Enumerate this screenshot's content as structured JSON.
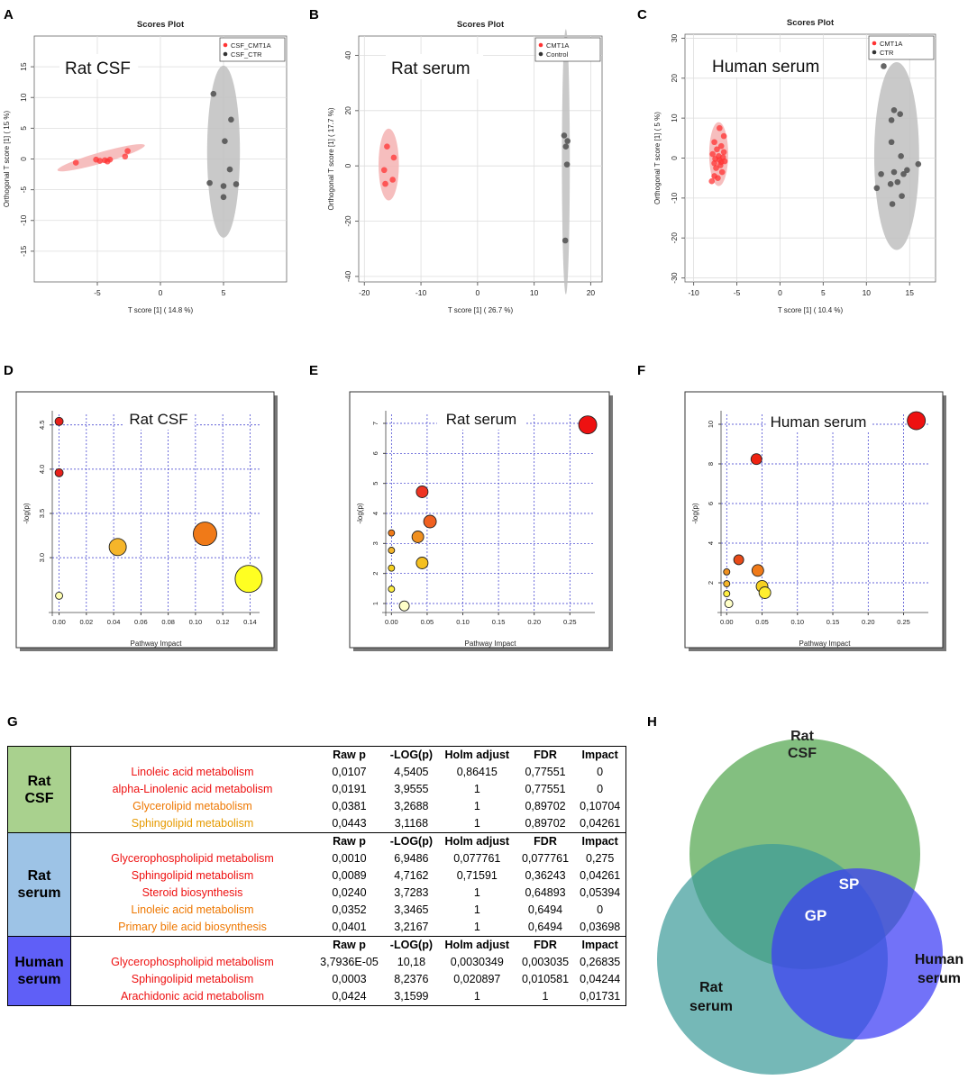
{
  "panel_letters": [
    "A",
    "B",
    "C",
    "D",
    "E",
    "F",
    "G",
    "H"
  ],
  "colors": {
    "red": "#ff3333",
    "gray": "#555555",
    "ellipse_red": "#f4b3b3",
    "ellipse_gray": "#bfbfbf",
    "grid_blue": "#3333cc",
    "ratcsf_fill": "#a9d18e",
    "ratserum_fill": "#9dc3e6",
    "humanserum_fill": "#5f5ff7",
    "venn_csf": "#5aaa55",
    "venn_ratserum": "#3a9a98",
    "venn_human": "#3b3bf5",
    "text_red": "#ee1111",
    "text_orange": "#ee7700",
    "text_gold": "#e69a00"
  },
  "chart_data": [
    {
      "id": "A",
      "type": "scatter",
      "title": "Scores Plot",
      "annotation": "Rat CSF",
      "xlabel": "T score [1] ( 14.8 %)",
      "ylabel": "Orthogonal T score [1] ( 15 %)",
      "xlim": [
        -10,
        10
      ],
      "ylim": [
        -20,
        20
      ],
      "xticks": [
        -5,
        0,
        5
      ],
      "yticks": [
        -15,
        -10,
        -5,
        0,
        5,
        10,
        15
      ],
      "legend": [
        "CSF_CMT1A",
        "CSF_CTR"
      ],
      "series": [
        {
          "name": "CSF_CMT1A",
          "color": "red",
          "points": [
            [
              -6.7,
              -0.6
            ],
            [
              -5.1,
              -0.1
            ],
            [
              -4.8,
              -0.3
            ],
            [
              -4.4,
              -0.2
            ],
            [
              -4.2,
              -0.4
            ],
            [
              -4.0,
              -0.1
            ],
            [
              -2.8,
              0.4
            ],
            [
              -2.6,
              1.3
            ]
          ],
          "ellipse": {
            "cx": -4.7,
            "cy": 0.2,
            "rx": 3.6,
            "ry": 0.9,
            "angle": -16
          }
        },
        {
          "name": "CSF_CTR",
          "color": "gray",
          "points": [
            [
              4.2,
              10.6
            ],
            [
              5.6,
              6.4
            ],
            [
              5.1,
              2.9
            ],
            [
              5.5,
              -1.7
            ],
            [
              3.9,
              -3.9
            ],
            [
              6.0,
              -4.1
            ],
            [
              5.0,
              -4.4
            ],
            [
              5.0,
              -6.2
            ]
          ],
          "ellipse": {
            "cx": 5.0,
            "cy": 1.2,
            "rx": 1.3,
            "ry": 14.0,
            "angle": 0
          }
        }
      ]
    },
    {
      "id": "B",
      "type": "scatter",
      "title": "Scores Plot",
      "annotation": "Rat serum",
      "xlabel": "T score [1] ( 26.7 %)",
      "ylabel": "Orthogonal T score [1] ( 17.7 %)",
      "xlim": [
        -21,
        22
      ],
      "ylim": [
        -42,
        47
      ],
      "xticks": [
        -20,
        -10,
        0,
        10,
        20
      ],
      "yticks": [
        -40,
        -20,
        0,
        20,
        40
      ],
      "legend": [
        "CMT1A",
        "Control"
      ],
      "series": [
        {
          "name": "CMT1A",
          "color": "red",
          "points": [
            [
              -16.0,
              7.0
            ],
            [
              -14.8,
              3.0
            ],
            [
              -16.5,
              -1.5
            ],
            [
              -15.0,
              -5.0
            ],
            [
              -16.3,
              -6.5
            ]
          ],
          "ellipse": {
            "cx": -15.7,
            "cy": 0.5,
            "rx": 1.8,
            "ry": 13.0,
            "angle": 0
          }
        },
        {
          "name": "Control",
          "color": "gray",
          "points": [
            [
              15.3,
              11.0
            ],
            [
              15.9,
              9.0
            ],
            [
              15.6,
              7.0
            ],
            [
              15.8,
              0.5
            ],
            [
              15.5,
              -27.0
            ]
          ],
          "ellipse": {
            "cx": 15.6,
            "cy": 1.5,
            "rx": 0.7,
            "ry": 48.0,
            "angle": 0
          }
        }
      ]
    },
    {
      "id": "C",
      "type": "scatter",
      "title": "Scores Plot",
      "annotation": "Human serum",
      "xlabel": "T score [1] ( 10.4 %)",
      "ylabel": "Orthogonal T score [1] ( 5 %)",
      "xlim": [
        -11,
        18
      ],
      "ylim": [
        -31,
        31
      ],
      "xticks": [
        -10,
        -5,
        0,
        5,
        10,
        15
      ],
      "yticks": [
        -30,
        -20,
        -10,
        0,
        10,
        20,
        30
      ],
      "legend": [
        "CMT1A",
        "CTR"
      ],
      "series": [
        {
          "name": "CMT1A",
          "color": "red",
          "points": [
            [
              -7.0,
              7.5
            ],
            [
              -6.5,
              5.5
            ],
            [
              -7.6,
              4.0
            ],
            [
              -6.8,
              3.0
            ],
            [
              -7.3,
              2.2
            ],
            [
              -6.5,
              1.5
            ],
            [
              -7.8,
              1.0
            ],
            [
              -7.1,
              0.5
            ],
            [
              -6.6,
              0.2
            ],
            [
              -7.5,
              -0.2
            ],
            [
              -7.0,
              -0.5
            ],
            [
              -6.4,
              -0.8
            ],
            [
              -7.6,
              -1.3
            ],
            [
              -6.9,
              -1.8
            ],
            [
              -7.4,
              -2.5
            ],
            [
              -6.7,
              -3.5
            ],
            [
              -7.6,
              -4.5
            ],
            [
              -7.9,
              -5.8
            ],
            [
              -7.2,
              -5.0
            ],
            [
              -6.8,
              -1.0
            ]
          ],
          "ellipse": {
            "cx": -7.1,
            "cy": 1.0,
            "rx": 1.1,
            "ry": 8.0,
            "angle": 0
          }
        },
        {
          "name": "CTR",
          "color": "gray",
          "points": [
            [
              12.0,
              23.0
            ],
            [
              13.2,
              12.0
            ],
            [
              12.9,
              9.5
            ],
            [
              13.9,
              11.0
            ],
            [
              12.9,
              4.0
            ],
            [
              14.0,
              0.5
            ],
            [
              11.7,
              -4.0
            ],
            [
              13.2,
              -3.5
            ],
            [
              14.3,
              -4.0
            ],
            [
              14.7,
              -3.0
            ],
            [
              16.0,
              -1.5
            ],
            [
              13.6,
              -6.0
            ],
            [
              12.8,
              -6.5
            ],
            [
              11.2,
              -7.5
            ],
            [
              14.1,
              -9.5
            ],
            [
              13.0,
              -11.5
            ]
          ],
          "ellipse": {
            "cx": 13.5,
            "cy": 0.5,
            "rx": 2.6,
            "ry": 23.5,
            "angle": 0
          }
        }
      ]
    },
    {
      "id": "D",
      "type": "scatter",
      "title": "",
      "annotation": "Rat CSF",
      "xlabel": "Pathway Impact",
      "ylabel": "-log(p)",
      "xlim": [
        -0.005,
        0.147
      ],
      "ylim": [
        2.38,
        4.62
      ],
      "xticks": [
        "0.00",
        "0.02",
        "0.04",
        "0.06",
        "0.08",
        "0.10",
        "0.12",
        "0.14"
      ],
      "yticks": [
        "3.0",
        "3.5",
        "4.0",
        "4.5"
      ],
      "points": [
        {
          "x": 0.0,
          "y": 4.54,
          "r": 4.5,
          "color": "#e8201a"
        },
        {
          "x": 0.0,
          "y": 3.96,
          "r": 4.5,
          "color": "#e8201a"
        },
        {
          "x": 0.107,
          "y": 3.27,
          "r": 13,
          "color": "#f07a18"
        },
        {
          "x": 0.043,
          "y": 3.12,
          "r": 9.5,
          "color": "#f5b52a"
        },
        {
          "x": 0.139,
          "y": 2.76,
          "r": 15,
          "color": "#ffff22"
        },
        {
          "x": 0.0,
          "y": 2.57,
          "r": 4,
          "color": "#ffffb0"
        }
      ]
    },
    {
      "id": "E",
      "type": "scatter",
      "title": "",
      "annotation": "Rat serum",
      "xlabel": "Pathway Impact",
      "ylabel": "-log(p)",
      "xlim": [
        -0.008,
        0.285
      ],
      "ylim": [
        0.7,
        7.3
      ],
      "xticks": [
        "0.00",
        "0.05",
        "0.10",
        "0.15",
        "0.20",
        "0.25"
      ],
      "yticks": [
        "1",
        "2",
        "3",
        "4",
        "5",
        "6",
        "7"
      ],
      "points": [
        {
          "x": 0.275,
          "y": 6.95,
          "r": 10,
          "color": "#ee1111"
        },
        {
          "x": 0.043,
          "y": 4.72,
          "r": 6.5,
          "color": "#ee3322"
        },
        {
          "x": 0.054,
          "y": 3.73,
          "r": 7,
          "color": "#f06020"
        },
        {
          "x": 0.0,
          "y": 3.35,
          "r": 3.5,
          "color": "#f07a18"
        },
        {
          "x": 0.037,
          "y": 3.22,
          "r": 6.5,
          "color": "#f09020"
        },
        {
          "x": 0.0,
          "y": 2.77,
          "r": 3.5,
          "color": "#f5b52a"
        },
        {
          "x": 0.043,
          "y": 2.35,
          "r": 6.5,
          "color": "#f5c020"
        },
        {
          "x": 0.0,
          "y": 2.18,
          "r": 3.5,
          "color": "#f5d020"
        },
        {
          "x": 0.0,
          "y": 1.48,
          "r": 3.5,
          "color": "#ffee44"
        },
        {
          "x": 0.018,
          "y": 0.92,
          "r": 5.5,
          "color": "#ffffc8"
        }
      ]
    },
    {
      "id": "F",
      "type": "scatter",
      "title": "",
      "annotation": "Human serum",
      "xlabel": "Pathway Impact",
      "ylabel": "-log(p)",
      "xlim": [
        -0.008,
        0.285
      ],
      "ylim": [
        0.5,
        10.5
      ],
      "xticks": [
        "0.00",
        "0.05",
        "0.10",
        "0.15",
        "0.20",
        "0.25"
      ],
      "yticks": [
        "2",
        "4",
        "6",
        "8",
        "10"
      ],
      "points": [
        {
          "x": 0.268,
          "y": 10.18,
          "r": 10,
          "color": "#ee1111"
        },
        {
          "x": 0.042,
          "y": 8.24,
          "r": 6,
          "color": "#ee2211"
        },
        {
          "x": 0.017,
          "y": 3.16,
          "r": 5.5,
          "color": "#e84a18"
        },
        {
          "x": 0.044,
          "y": 2.62,
          "r": 6.5,
          "color": "#f07a18"
        },
        {
          "x": 0.0,
          "y": 2.55,
          "r": 3.5,
          "color": "#f09020"
        },
        {
          "x": 0.0,
          "y": 1.95,
          "r": 3.5,
          "color": "#f5b52a"
        },
        {
          "x": 0.05,
          "y": 1.82,
          "r": 6.5,
          "color": "#f5d020"
        },
        {
          "x": 0.054,
          "y": 1.5,
          "r": 6.5,
          "color": "#ffee30"
        },
        {
          "x": 0.0,
          "y": 1.45,
          "r": 3.5,
          "color": "#ffee44"
        },
        {
          "x": 0.003,
          "y": 0.95,
          "r": 4.5,
          "color": "#ffffc8"
        }
      ]
    }
  ],
  "table": {
    "headers": [
      "Raw p",
      "-LOG(p)",
      "Holm adjust",
      "FDR",
      "Impact"
    ],
    "groups": [
      {
        "label_line1": "Rat",
        "label_line2": "CSF",
        "fill": "ratcsf_fill",
        "rows": [
          {
            "name": "Linoleic acid metabolism",
            "color": "text_red",
            "values": [
              "0,0107",
              "4,5405",
              "0,86415",
              "0,77551",
              "0"
            ]
          },
          {
            "name": "alpha-Linolenic acid metabolism",
            "color": "text_red",
            "values": [
              "0,0191",
              "3,9555",
              "1",
              "0,77551",
              "0"
            ]
          },
          {
            "name": "Glycerolipid metabolism",
            "color": "text_orange",
            "values": [
              "0,0381",
              "3,2688",
              "1",
              "0,89702",
              "0,10704"
            ]
          },
          {
            "name": "Sphingolipid metabolism",
            "color": "text_gold",
            "values": [
              "0,0443",
              "3,1168",
              "1",
              "0,89702",
              "0,04261"
            ]
          }
        ]
      },
      {
        "label_line1": "Rat",
        "label_line2": "serum",
        "fill": "ratserum_fill",
        "rows": [
          {
            "name": "Glycerophospholipid metabolism",
            "color": "text_red",
            "values": [
              "0,0010",
              "6,9486",
              "0,077761",
              "0,077761",
              "0,275"
            ]
          },
          {
            "name": "Sphingolipid metabolism",
            "color": "text_red",
            "values": [
              "0,0089",
              "4,7162",
              "0,71591",
              "0,36243",
              "0,04261"
            ]
          },
          {
            "name": "Steroid biosynthesis",
            "color": "text_red",
            "values": [
              "0,0240",
              "3,7283",
              "1",
              "0,64893",
              "0,05394"
            ]
          },
          {
            "name": "Linoleic acid metabolism",
            "color": "text_orange",
            "values": [
              "0,0352",
              "3,3465",
              "1",
              "0,6494",
              "0"
            ]
          },
          {
            "name": "Primary bile acid biosynthesis",
            "color": "text_orange",
            "values": [
              "0,0401",
              "3,2167",
              "1",
              "0,6494",
              "0,03698"
            ]
          }
        ]
      },
      {
        "label_line1": "Human",
        "label_line2": "serum",
        "fill": "humanserum_fill",
        "rows": [
          {
            "name": "Glycerophospholipid metabolism",
            "color": "text_red",
            "values": [
              "3,7936E-05",
              "10,18",
              "0,0030349",
              "0,003035",
              "0,26835"
            ]
          },
          {
            "name": "Sphingolipid metabolism",
            "color": "text_red",
            "values": [
              "0,0003",
              "8,2376",
              "0,020897",
              "0,010581",
              "0,04244"
            ]
          },
          {
            "name": "Arachidonic acid metabolism",
            "color": "text_red",
            "values": [
              "0,0424",
              "3,1599",
              "1",
              "1",
              "0,01731"
            ]
          }
        ]
      }
    ]
  },
  "venn": {
    "sets": [
      {
        "line1": "Rat",
        "line2": "CSF"
      },
      {
        "line1": "Rat",
        "line2": "serum"
      },
      {
        "line1": "Human",
        "line2": "serum"
      }
    ],
    "intersections": [
      "SP",
      "GP"
    ]
  }
}
